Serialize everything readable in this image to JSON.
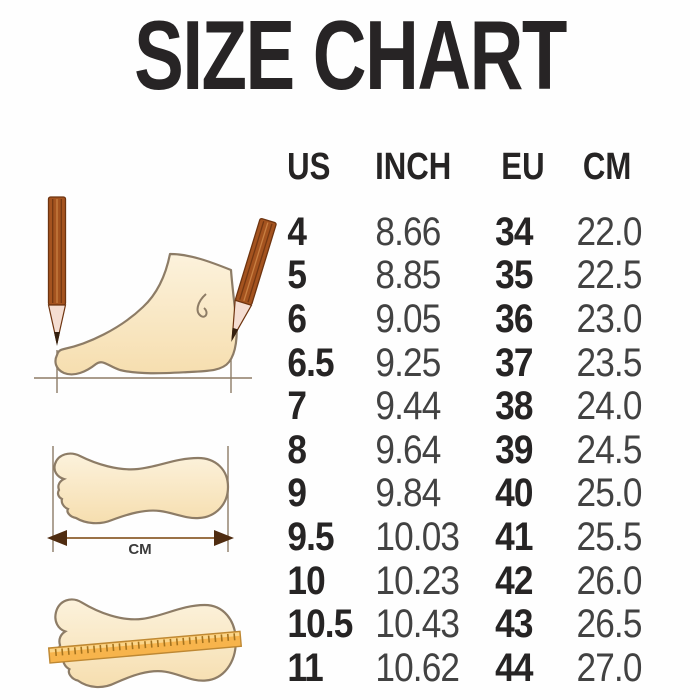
{
  "title": "SIZE CHART",
  "chart_data": {
    "type": "table",
    "title": "SIZE CHART",
    "columns": [
      "US",
      "INCH",
      "EU",
      "CM"
    ],
    "rows": [
      [
        "4",
        "8.66",
        "34",
        "22.0"
      ],
      [
        "5",
        "8.85",
        "35",
        "22.5"
      ],
      [
        "6",
        "9.05",
        "36",
        "23.0"
      ],
      [
        "6.5",
        "9.25",
        "37",
        "23.5"
      ],
      [
        "7",
        "9.44",
        "38",
        "24.0"
      ],
      [
        "8",
        "9.64",
        "39",
        "24.5"
      ],
      [
        "9",
        "9.84",
        "40",
        "25.0"
      ],
      [
        "9.5",
        "10.03",
        "41",
        "25.5"
      ],
      [
        "10",
        "10.23",
        "42",
        "26.0"
      ],
      [
        "10.5",
        "10.43",
        "43",
        "26.5"
      ],
      [
        "11",
        "10.62",
        "44",
        "27.0"
      ]
    ]
  },
  "illustrations": {
    "foot_measure_label": "CM",
    "items": [
      "foot-side-between-pencils-icon",
      "footprint-length-arrow-icon",
      "footprint-with-ruler-icon"
    ]
  },
  "colors": {
    "title_text": "#272425",
    "bold_text": "#262424",
    "light_text": "#424242",
    "outline_brown": "#8d7c66",
    "foot_fill_top": "#FCF2DC",
    "foot_fill_bottom": "#F6DEAF",
    "pencil_body": "#A4531F",
    "pencil_stripe": "#753812",
    "pencil_wood": "#F5DED2",
    "pencil_lead": "#35200e",
    "arrow_head": "#4f2c10",
    "arrow_shaft": "#9a7147",
    "ruler_orange": "#F7B44C",
    "ruler_highlight": "#FBD589",
    "ruler_tick": "#A5731E"
  }
}
